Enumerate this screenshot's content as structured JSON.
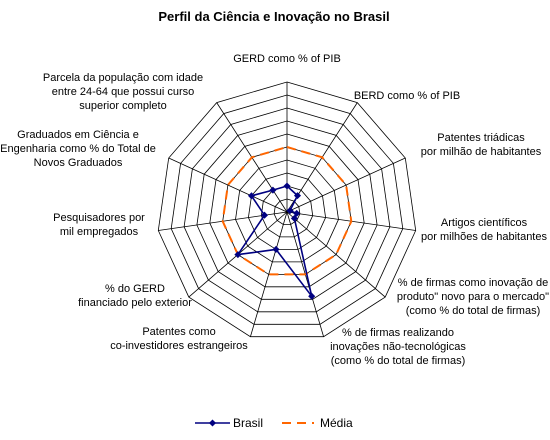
{
  "chart_data": {
    "type": "radar",
    "title": "Perfil da Ciência e Inovação no Brasil",
    "axes": [
      [
        "GERD como  % of PIB"
      ],
      [
        "BERD como % of PIB"
      ],
      [
        "Patentes triádicas",
        "por milhão de habitantes"
      ],
      [
        "Artigos científicos",
        "por milhões de habitantes"
      ],
      [
        "% de firmas como inovação de",
        "produto\" novo para o mercado\"",
        "(como % do total de firmas)"
      ],
      [
        "% de firmas realizando",
        "inovações não-tecnológicas",
        "(como % do total de firmas)"
      ],
      [
        "Patentes como",
        "co-investidores estrangeiros"
      ],
      [
        "% do GERD",
        "financiado  pelo exterior"
      ],
      [
        "Pesquisadores por",
        "mil empregados"
      ],
      [
        "Graduados em Ciência e",
        "Engenharia como % do Total de",
        "Novos Graduados"
      ],
      [
        "Parcela da população com idade",
        "entre 24-64 que possui curso",
        "superior  completo"
      ]
    ],
    "rmax": 200,
    "rings": 10,
    "series": [
      {
        "name": "Brasil",
        "color": "#000080",
        "values": [
          40,
          30,
          5,
          15,
          15,
          135,
          60,
          100,
          35,
          60,
          40
        ]
      },
      {
        "name": "Média",
        "color": "#ff6600",
        "values": [
          100,
          100,
          100,
          100,
          100,
          100,
          100,
          100,
          100,
          100,
          100
        ]
      }
    ],
    "legend": "bottom"
  }
}
